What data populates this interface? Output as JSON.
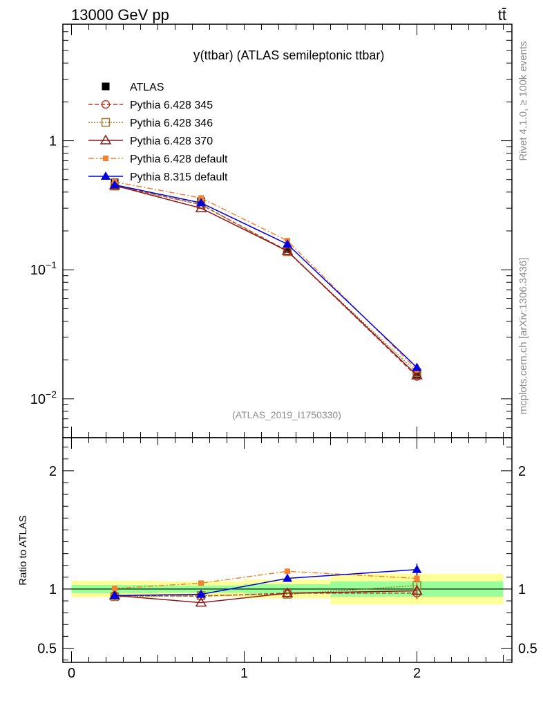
{
  "header": {
    "energy_label": "13000 GeV pp",
    "process_label": "tt̄"
  },
  "side_labels": {
    "rivet": "Rivet 4.1.0, ≥ 100k events",
    "mcplots": "mcplots.cern.ch [arXiv:1306.3436]"
  },
  "colors": {
    "ATLAS": "#000000",
    "Pythia 6.428 345": "#c0392b",
    "Pythia 6.428 346": "#a07a2c",
    "Pythia 6.428 370": "#8b1a1a",
    "Pythia 6.428 default": "#f58231",
    "Pythia 8.315 default": "#0000dd",
    "band_inner": "#99ff99",
    "band_outer": "#ffff99"
  },
  "chart_data": [
    {
      "type": "line",
      "panel": "main",
      "title": "y(ttbar) (ATLAS semileptonic ttbar)",
      "title_prefix": "y",
      "title_rest": "(ttbar) (ATLAS semileptonic ttbar)",
      "watermark": "(ATLAS_2019_I1750330)",
      "xlabel": "",
      "ylabel": "",
      "yscale": "log",
      "xlim": [
        -0.05,
        2.55
      ],
      "ylim": [
        0.005,
        8
      ],
      "y_tick_labels": [
        {
          "value": 1,
          "base": "1",
          "exp": ""
        },
        {
          "value": 0.1,
          "base": "10",
          "exp": "−1"
        },
        {
          "value": 0.01,
          "base": "10",
          "exp": "−2"
        }
      ],
      "x": [
        0.25,
        0.75,
        1.25,
        2.0
      ],
      "series": [
        {
          "name": "ATLAS",
          "marker": "filled-square",
          "dash": "none",
          "values": [
            0.475,
            0.34,
            0.145,
            0.0155
          ],
          "errors": [
            0.01,
            0.008,
            0.004,
            0.0008
          ]
        },
        {
          "name": "Pythia 6.428 345",
          "marker": "open-circle",
          "dash": "6,3",
          "values": [
            0.45,
            0.32,
            0.14,
            0.0149
          ],
          "errors": [
            0,
            0,
            0,
            0.0008
          ]
        },
        {
          "name": "Pythia 6.428 346",
          "marker": "open-square",
          "dash": "2,2",
          "values": [
            0.445,
            0.32,
            0.138,
            0.016
          ],
          "errors": [
            0,
            0,
            0,
            0
          ]
        },
        {
          "name": "Pythia 6.428 370",
          "marker": "open-triangle",
          "dash": "none",
          "values": [
            0.45,
            0.3,
            0.14,
            0.0152
          ],
          "errors": [
            0,
            0,
            0,
            0
          ]
        },
        {
          "name": "Pythia 6.428 default",
          "marker": "filled-square-small",
          "dash": "8,3,2,3",
          "values": [
            0.48,
            0.36,
            0.168,
            0.0168
          ],
          "errors": [
            0,
            0,
            0,
            0
          ]
        },
        {
          "name": "Pythia 8.315 default",
          "marker": "filled-triangle",
          "dash": "none",
          "values": [
            0.455,
            0.33,
            0.158,
            0.0175
          ],
          "errors": [
            0.006,
            0.004,
            0.002,
            0.0008
          ]
        }
      ]
    },
    {
      "type": "line",
      "panel": "ratio",
      "title": "",
      "xlabel": "",
      "ylabel": "Ratio to ATLAS",
      "xlim": [
        -0.05,
        2.55
      ],
      "ylim": [
        0.38,
        2.28
      ],
      "x_tick_labels": [
        "0",
        "1",
        "2"
      ],
      "x_ticks": [
        0,
        1,
        2
      ],
      "y_tick_labels": [
        "0.5",
        "1",
        "2"
      ],
      "y_ticks": [
        0.5,
        1,
        2
      ],
      "bins": [
        [
          0,
          0.5
        ],
        [
          0.5,
          1.0
        ],
        [
          1.0,
          1.5
        ],
        [
          1.5,
          2.5
        ]
      ],
      "band_inner": [
        [
          0.965,
          1.035
        ],
        [
          0.97,
          1.03
        ],
        [
          0.96,
          1.04
        ],
        [
          0.935,
          1.065
        ]
      ],
      "band_outer": [
        [
          0.93,
          1.07
        ],
        [
          0.935,
          1.065
        ],
        [
          0.92,
          1.08
        ],
        [
          0.87,
          1.13
        ]
      ],
      "x": [
        0.25,
        0.75,
        1.25,
        2.0
      ],
      "series": [
        {
          "name": "Pythia 6.428 345",
          "values": [
            0.945,
            0.94,
            0.965,
            0.965
          ],
          "errors": [
            0,
            0,
            0,
            0.05
          ]
        },
        {
          "name": "Pythia 6.428 346",
          "values": [
            0.935,
            0.945,
            0.955,
            1.03
          ],
          "errors": [
            0,
            0,
            0,
            0.04
          ]
        },
        {
          "name": "Pythia 6.428 370",
          "values": [
            0.945,
            0.885,
            0.965,
            0.985
          ],
          "errors": [
            0,
            0,
            0,
            0
          ]
        },
        {
          "name": "Pythia 6.428 default",
          "values": [
            1.005,
            1.05,
            1.15,
            1.09
          ],
          "errors": [
            0,
            0,
            0.02,
            0.04
          ]
        },
        {
          "name": "Pythia 8.315 default",
          "values": [
            0.945,
            0.955,
            1.09,
            1.165
          ],
          "errors": [
            0.01,
            0.01,
            0.015,
            0.05
          ]
        }
      ]
    }
  ]
}
